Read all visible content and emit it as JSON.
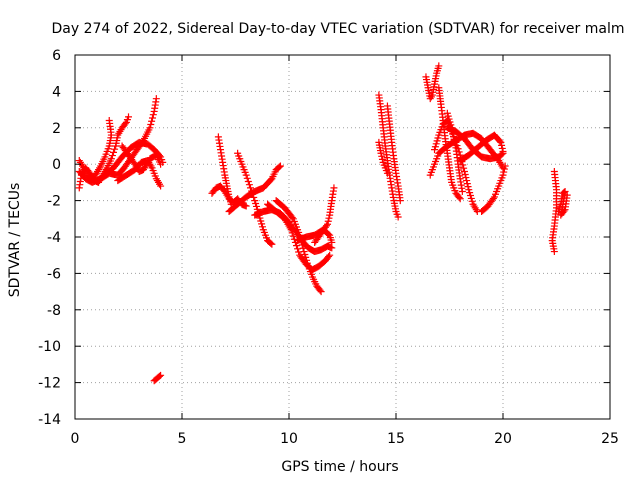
{
  "chart_data": {
    "type": "scatter",
    "title": "Day 274 of 2022, Sidereal Day-to-day VTEC variation (SDTVAR) for receiver malm",
    "xlabel": "GPS time / hours",
    "ylabel": "SDTVAR / TECUs",
    "xlim": [
      0,
      25
    ],
    "ylim": [
      -14,
      6
    ],
    "xticks": [
      0,
      5,
      10,
      15,
      20,
      25
    ],
    "yticks": [
      -14,
      -12,
      -10,
      -8,
      -6,
      -4,
      -2,
      0,
      2,
      4,
      6
    ],
    "grid": true,
    "marker": "+",
    "series": [
      {
        "name": "SDTVAR",
        "color": "#ff0000",
        "segments": [
          [
            [
              0.2,
              -1.3
            ],
            [
              0.3,
              -0.6
            ],
            [
              0.5,
              -0.2
            ],
            [
              0.7,
              -0.5
            ],
            [
              0.9,
              -0.9
            ],
            [
              1.1,
              -1.0
            ],
            [
              1.3,
              -0.6
            ],
            [
              1.5,
              -0.2
            ],
            [
              1.7,
              0.3
            ],
            [
              1.9,
              1.0
            ],
            [
              2.0,
              1.6
            ],
            [
              2.2,
              2.0
            ],
            [
              2.4,
              2.3
            ],
            [
              2.5,
              2.6
            ]
          ],
          [
            [
              0.2,
              0.2
            ],
            [
              0.4,
              -0.2
            ],
            [
              0.6,
              -0.6
            ],
            [
              0.8,
              -0.8
            ],
            [
              1.0,
              -0.5
            ],
            [
              1.2,
              -0.1
            ],
            [
              1.4,
              0.4
            ],
            [
              1.6,
              1.0
            ],
            [
              1.7,
              1.6
            ],
            [
              1.6,
              2.4
            ]
          ],
          [
            [
              0.2,
              -0.4
            ],
            [
              0.5,
              -0.8
            ],
            [
              0.8,
              -1.0
            ],
            [
              1.2,
              -0.8
            ],
            [
              1.6,
              -0.5
            ],
            [
              2.0,
              -0.6
            ],
            [
              2.3,
              -0.2
            ],
            [
              2.6,
              0.3
            ],
            [
              2.9,
              0.8
            ],
            [
              3.2,
              1.3
            ],
            [
              3.5,
              2.0
            ],
            [
              3.7,
              2.9
            ],
            [
              3.8,
              3.6
            ]
          ],
          [
            [
              1.4,
              -0.6
            ],
            [
              1.8,
              -0.2
            ],
            [
              2.2,
              0.4
            ],
            [
              2.6,
              0.9
            ],
            [
              3.0,
              1.2
            ],
            [
              3.4,
              1.1
            ],
            [
              3.7,
              0.8
            ],
            [
              4.0,
              0.4
            ],
            [
              4.1,
              0.1
            ]
          ],
          [
            [
              2.0,
              -0.9
            ],
            [
              2.4,
              -0.6
            ],
            [
              2.8,
              -0.3
            ],
            [
              3.1,
              0.1
            ],
            [
              3.4,
              0.2
            ],
            [
              3.6,
              -0.2
            ],
            [
              3.8,
              -0.8
            ],
            [
              4.0,
              -1.2
            ]
          ],
          [
            [
              2.2,
              1.0
            ],
            [
              2.5,
              0.5
            ],
            [
              2.8,
              0.0
            ],
            [
              3.0,
              -0.4
            ],
            [
              3.2,
              -0.3
            ],
            [
              3.5,
              0.3
            ],
            [
              3.8,
              0.5
            ],
            [
              4.0,
              0.0
            ]
          ],
          [
            [
              3.7,
              -11.9
            ],
            [
              3.9,
              -11.7
            ],
            [
              4.0,
              -11.6
            ]
          ],
          [
            [
              6.4,
              -1.6
            ],
            [
              6.6,
              -1.3
            ],
            [
              6.8,
              -1.2
            ],
            [
              7.0,
              -1.5
            ],
            [
              7.2,
              -1.9
            ],
            [
              7.4,
              -2.1
            ],
            [
              7.6,
              -1.9
            ],
            [
              7.8,
              -2.2
            ],
            [
              8.0,
              -2.3
            ]
          ],
          [
            [
              6.7,
              1.5
            ],
            [
              6.8,
              0.8
            ],
            [
              6.9,
              0.1
            ],
            [
              7.0,
              -0.6
            ],
            [
              7.1,
              -1.2
            ],
            [
              7.2,
              -1.8
            ],
            [
              7.3,
              -2.2
            ]
          ],
          [
            [
              7.6,
              0.6
            ],
            [
              7.8,
              0.0
            ],
            [
              8.0,
              -0.6
            ],
            [
              8.2,
              -1.3
            ],
            [
              8.4,
              -2.0
            ],
            [
              8.6,
              -2.8
            ],
            [
              8.8,
              -3.6
            ],
            [
              9.0,
              -4.2
            ],
            [
              9.2,
              -4.4
            ]
          ],
          [
            [
              7.2,
              -2.6
            ],
            [
              7.6,
              -2.2
            ],
            [
              8.0,
              -1.8
            ],
            [
              8.4,
              -1.5
            ],
            [
              8.8,
              -1.3
            ],
            [
              9.2,
              -0.8
            ],
            [
              9.4,
              -0.3
            ],
            [
              9.6,
              -0.1
            ]
          ],
          [
            [
              8.4,
              -2.8
            ],
            [
              8.8,
              -2.6
            ],
            [
              9.2,
              -2.5
            ],
            [
              9.6,
              -2.7
            ],
            [
              10.0,
              -3.2
            ],
            [
              10.3,
              -3.7
            ],
            [
              10.6,
              -4.2
            ],
            [
              10.9,
              -4.6
            ],
            [
              11.2,
              -4.8
            ],
            [
              11.5,
              -4.7
            ],
            [
              11.8,
              -4.5
            ],
            [
              12.0,
              -4.6
            ]
          ],
          [
            [
              9.0,
              -2.2
            ],
            [
              9.4,
              -2.6
            ],
            [
              9.8,
              -3.0
            ],
            [
              10.1,
              -3.6
            ],
            [
              10.3,
              -4.3
            ],
            [
              10.5,
              -5.0
            ],
            [
              10.8,
              -5.5
            ],
            [
              11.1,
              -5.8
            ],
            [
              11.4,
              -5.6
            ],
            [
              11.7,
              -5.3
            ],
            [
              11.9,
              -5.0
            ]
          ],
          [
            [
              9.4,
              -2.0
            ],
            [
              9.8,
              -2.4
            ],
            [
              10.2,
              -3.0
            ],
            [
              10.5,
              -3.9
            ],
            [
              10.7,
              -4.8
            ],
            [
              10.9,
              -5.6
            ],
            [
              11.1,
              -6.2
            ],
            [
              11.3,
              -6.7
            ],
            [
              11.5,
              -7.0
            ]
          ],
          [
            [
              11.2,
              -4.3
            ],
            [
              11.5,
              -3.8
            ],
            [
              11.8,
              -3.3
            ],
            [
              11.9,
              -2.8
            ],
            [
              12.0,
              -2.0
            ],
            [
              12.1,
              -1.3
            ]
          ],
          [
            [
              10.4,
              -4.2
            ],
            [
              10.8,
              -4.0
            ],
            [
              11.2,
              -3.9
            ],
            [
              11.6,
              -3.6
            ],
            [
              11.9,
              -3.9
            ],
            [
              12.0,
              -4.3
            ]
          ],
          [
            [
              14.2,
              3.8
            ],
            [
              14.3,
              3.0
            ],
            [
              14.4,
              2.0
            ],
            [
              14.5,
              1.0
            ],
            [
              14.6,
              0.2
            ],
            [
              14.7,
              -0.6
            ],
            [
              14.8,
              -1.3
            ],
            [
              14.9,
              -2.0
            ],
            [
              15.0,
              -2.6
            ],
            [
              15.1,
              -2.9
            ]
          ],
          [
            [
              14.6,
              3.2
            ],
            [
              14.7,
              2.2
            ],
            [
              14.8,
              1.2
            ],
            [
              14.9,
              0.3
            ],
            [
              15.0,
              -0.5
            ],
            [
              15.1,
              -1.2
            ],
            [
              15.2,
              -2.0
            ]
          ],
          [
            [
              14.2,
              1.2
            ],
            [
              14.3,
              0.6
            ],
            [
              14.4,
              0.1
            ],
            [
              14.5,
              -0.2
            ],
            [
              14.6,
              -0.5
            ]
          ],
          [
            [
              16.4,
              4.8
            ],
            [
              16.5,
              4.2
            ],
            [
              16.6,
              3.6
            ],
            [
              16.7,
              3.8
            ],
            [
              16.8,
              4.4
            ],
            [
              16.9,
              5.0
            ],
            [
              17.0,
              5.4
            ]
          ],
          [
            [
              17.0,
              4.2
            ],
            [
              17.1,
              3.3
            ],
            [
              17.2,
              2.4
            ],
            [
              17.3,
              1.4
            ],
            [
              17.4,
              0.6
            ],
            [
              17.5,
              -0.2
            ],
            [
              17.6,
              -1.0
            ],
            [
              17.8,
              -1.6
            ],
            [
              18.0,
              -1.9
            ]
          ],
          [
            [
              16.8,
              0.8
            ],
            [
              17.0,
              1.6
            ],
            [
              17.2,
              2.2
            ],
            [
              17.4,
              2.4
            ],
            [
              17.6,
              1.8
            ],
            [
              17.8,
              1.2
            ],
            [
              18.0,
              0.5
            ],
            [
              18.2,
              -0.4
            ],
            [
              18.4,
              -1.4
            ],
            [
              18.6,
              -2.2
            ],
            [
              18.8,
              -2.6
            ]
          ],
          [
            [
              16.6,
              -0.6
            ],
            [
              16.8,
              0.0
            ],
            [
              17.0,
              0.6
            ],
            [
              17.4,
              1.0
            ],
            [
              17.8,
              1.3
            ],
            [
              18.2,
              1.6
            ],
            [
              18.6,
              1.7
            ],
            [
              19.0,
              1.4
            ],
            [
              19.4,
              0.8
            ],
            [
              19.8,
              0.2
            ],
            [
              20.0,
              -0.2
            ]
          ],
          [
            [
              17.4,
              2.0
            ],
            [
              17.8,
              1.8
            ],
            [
              18.2,
              1.4
            ],
            [
              18.6,
              0.8
            ],
            [
              19.0,
              0.4
            ],
            [
              19.4,
              0.3
            ],
            [
              19.8,
              0.4
            ],
            [
              20.0,
              0.6
            ]
          ],
          [
            [
              18.0,
              0.2
            ],
            [
              18.4,
              0.5
            ],
            [
              18.8,
              0.9
            ],
            [
              19.2,
              1.3
            ],
            [
              19.6,
              1.6
            ],
            [
              19.9,
              1.2
            ],
            [
              20.0,
              0.7
            ]
          ],
          [
            [
              19.0,
              -2.6
            ],
            [
              19.3,
              -2.3
            ],
            [
              19.6,
              -1.8
            ],
            [
              19.8,
              -1.2
            ],
            [
              20.0,
              -0.6
            ],
            [
              20.1,
              -0.1
            ]
          ],
          [
            [
              17.4,
              2.8
            ],
            [
              17.6,
              2.0
            ],
            [
              17.8,
              0.9
            ],
            [
              17.9,
              0.0
            ],
            [
              18.0,
              -0.8
            ],
            [
              18.1,
              -1.5
            ]
          ],
          [
            [
              22.4,
              -0.4
            ],
            [
              22.5,
              -1.4
            ],
            [
              22.5,
              -2.4
            ],
            [
              22.4,
              -3.4
            ],
            [
              22.3,
              -4.2
            ],
            [
              22.4,
              -4.8
            ]
          ],
          [
            [
              22.6,
              -2.6
            ],
            [
              22.7,
              -2.2
            ],
            [
              22.8,
              -1.6
            ],
            [
              22.9,
              -1.5
            ],
            [
              22.8,
              -2.2
            ],
            [
              22.7,
              -2.8
            ],
            [
              22.9,
              -2.5
            ],
            [
              23.0,
              -1.7
            ]
          ]
        ]
      }
    ]
  }
}
